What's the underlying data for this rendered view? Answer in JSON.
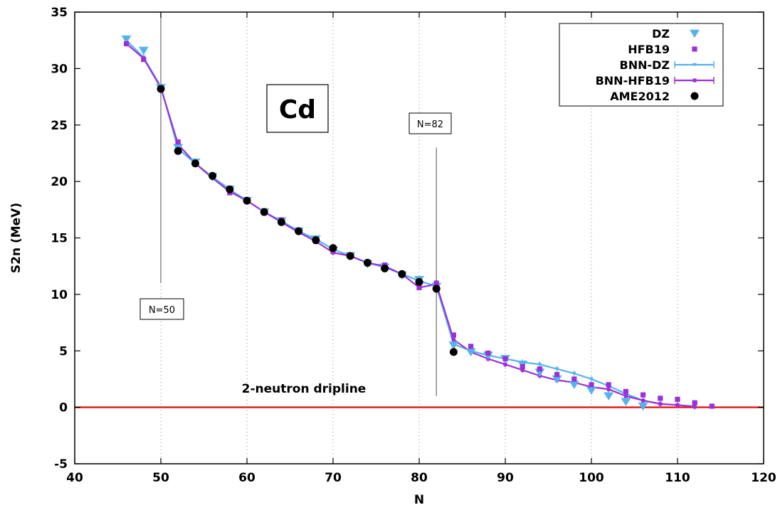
{
  "chart_data": {
    "type": "line",
    "title": "",
    "xlabel": "N",
    "ylabel": "S2n (MeV)",
    "xlim": [
      40,
      120
    ],
    "ylim": [
      -5,
      35
    ],
    "x_ticks": [
      "40",
      "50",
      "60",
      "70",
      "80",
      "90",
      "100",
      "110",
      "120"
    ],
    "y_ticks": [
      "-5",
      "0",
      "5",
      "10",
      "15",
      "20",
      "25",
      "30",
      "35"
    ],
    "grid": "vertical dotted",
    "legend_position": "top-right",
    "series": [
      {
        "name": "DZ",
        "style": "points",
        "marker": "triangle-down",
        "color": "#56b4e9",
        "x": [
          46,
          48,
          50,
          52,
          54,
          56,
          58,
          60,
          62,
          64,
          66,
          68,
          70,
          72,
          74,
          76,
          78,
          80,
          82,
          84,
          86,
          88,
          90,
          92,
          94,
          96,
          98,
          100,
          102,
          104,
          106
        ],
        "y": [
          32.6,
          31.6,
          28.3,
          23.0,
          21.7,
          20.4,
          19.3,
          18.3,
          17.3,
          16.5,
          15.6,
          14.9,
          13.9,
          13.4,
          12.7,
          12.4,
          11.7,
          11.3,
          10.7,
          5.5,
          4.9,
          4.6,
          4.3,
          3.8,
          3.1,
          2.5,
          2.0,
          1.5,
          1.0,
          0.5,
          0.1
        ]
      },
      {
        "name": "HFB19",
        "style": "points",
        "marker": "square",
        "color": "#9b30d9",
        "x": [
          46,
          48,
          50,
          52,
          54,
          56,
          58,
          60,
          62,
          64,
          66,
          68,
          70,
          72,
          74,
          76,
          78,
          80,
          82,
          84,
          86,
          88,
          90,
          92,
          94,
          96,
          98,
          100,
          102,
          104,
          106,
          108,
          110,
          112,
          114
        ],
        "y": [
          32.2,
          30.8,
          28.3,
          23.5,
          21.6,
          20.5,
          19.0,
          18.3,
          17.2,
          16.6,
          15.6,
          14.7,
          13.8,
          13.5,
          12.8,
          12.6,
          11.7,
          10.6,
          11.0,
          6.4,
          5.4,
          4.8,
          4.3,
          3.6,
          3.4,
          2.9,
          2.5,
          2.0,
          2.0,
          1.4,
          1.1,
          0.8,
          0.7,
          0.4,
          0.1
        ]
      },
      {
        "name": "BNN-DZ",
        "style": "line-errorbars",
        "marker": "triangle-down",
        "color": "#56b4e9",
        "x": [
          46,
          48,
          50,
          52,
          54,
          56,
          58,
          60,
          62,
          64,
          66,
          68,
          70,
          72,
          74,
          76,
          78,
          80,
          82,
          84,
          86,
          88,
          90,
          92,
          94,
          96,
          98,
          100,
          102,
          104,
          106,
          108,
          110,
          112
        ],
        "y": [
          32.5,
          31.0,
          28.4,
          22.9,
          21.6,
          20.4,
          19.3,
          18.3,
          17.3,
          16.5,
          15.6,
          14.9,
          14.0,
          13.4,
          12.8,
          12.4,
          11.8,
          11.2,
          10.7,
          5.6,
          5.0,
          4.6,
          4.3,
          4.0,
          3.8,
          3.4,
          3.0,
          2.5,
          1.9,
          1.2,
          0.6,
          0.3,
          0.2,
          0.1
        ]
      },
      {
        "name": "BNN-HFB19",
        "style": "line-errorbars",
        "marker": "square",
        "color": "#9b30d9",
        "x": [
          46,
          48,
          50,
          52,
          54,
          56,
          58,
          60,
          62,
          64,
          66,
          68,
          70,
          72,
          74,
          76,
          78,
          80,
          82,
          84,
          86,
          88,
          90,
          92,
          94,
          96,
          98,
          100,
          102,
          104,
          106,
          108,
          110,
          112
        ],
        "y": [
          32.2,
          30.9,
          28.3,
          23.3,
          21.6,
          20.3,
          19.1,
          18.3,
          17.3,
          16.4,
          15.5,
          14.7,
          13.7,
          13.4,
          12.8,
          12.5,
          11.8,
          10.6,
          10.9,
          6.0,
          4.9,
          4.3,
          3.8,
          3.3,
          2.8,
          2.4,
          2.2,
          1.8,
          1.6,
          1.0,
          0.6,
          0.3,
          0.2,
          0.05
        ]
      },
      {
        "name": "AME2012",
        "style": "points",
        "marker": "circle",
        "color": "#000000",
        "x": [
          50,
          52,
          54,
          56,
          58,
          60,
          62,
          64,
          66,
          68,
          70,
          72,
          74,
          76,
          78,
          80,
          82,
          84
        ],
        "y": [
          28.2,
          22.7,
          21.6,
          20.5,
          19.3,
          18.3,
          17.3,
          16.4,
          15.6,
          14.8,
          14.1,
          13.4,
          12.8,
          12.3,
          11.8,
          11.1,
          10.5,
          4.9
        ]
      }
    ],
    "annotations": {
      "element": "Cd",
      "n50": "N=50",
      "n82": "N=82",
      "dripline": "2-neutron dripline"
    },
    "reference_lines": [
      {
        "type": "horizontal",
        "y": 0,
        "color": "#e8231e",
        "label": "2-neutron dripline"
      },
      {
        "type": "vertical",
        "x": 50,
        "from_y": 11,
        "to_y": 35,
        "color": "#777777"
      },
      {
        "type": "vertical",
        "x": 82,
        "from_y": 1,
        "to_y": 23,
        "color": "#777777"
      }
    ]
  }
}
